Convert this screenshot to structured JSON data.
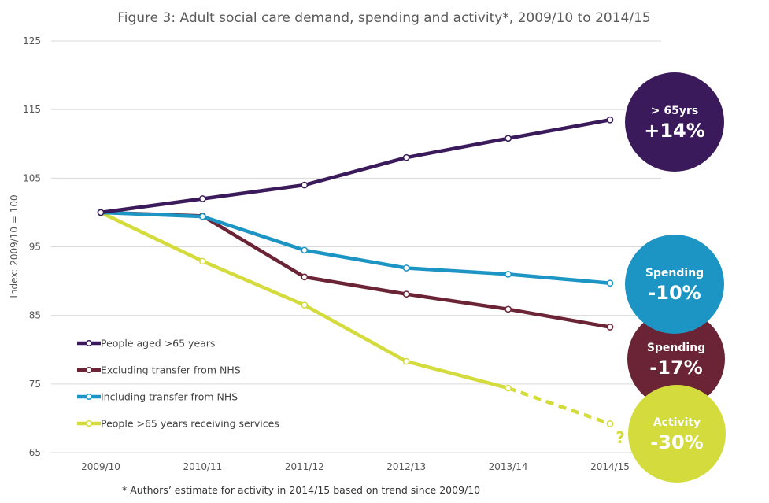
{
  "chart_data": {
    "type": "line",
    "title": "Figure 3: Adult social care demand, spending and activity*, 2009/10 to 2014/15",
    "ylabel": "Index:  2009/10  =  100",
    "xlabel": "",
    "ylim": [
      65,
      125
    ],
    "yticks": [
      65,
      75,
      85,
      95,
      105,
      115,
      125
    ],
    "categories": [
      "2009/10",
      "2010/11",
      "2011/12",
      "2012/13",
      "2013/14",
      "2014/15"
    ],
    "grid": "horizontal",
    "legend_position": "bottom-left",
    "series": [
      {
        "name": "People aged >65 years",
        "color": "#3a1a5a",
        "values": [
          100,
          102,
          104,
          108,
          110.8,
          113.5
        ]
      },
      {
        "name": "Excluding transfer from NHS",
        "color": "#6b2435",
        "values": [
          100,
          99.5,
          90.6,
          88.1,
          85.9,
          83.3
        ]
      },
      {
        "name": "Including transfer from NHS",
        "color": "#1d95c4",
        "values": [
          100,
          99.4,
          94.5,
          91.9,
          91.0,
          89.7
        ]
      },
      {
        "name": "People >65 years receiving services",
        "color": "#d3dc3c",
        "values": [
          100,
          92.9,
          86.5,
          78.3,
          74.4,
          69.2
        ],
        "estimated_last": true
      }
    ],
    "annotations": {
      "question_mark": "?",
      "footnote": "* Authors’ estimate for activity in 2014/15 based on trend since 2009/10"
    },
    "bubbles": [
      {
        "label": "> 65yrs",
        "value": "+14%",
        "color": "#3a1a5a"
      },
      {
        "label": "Spending",
        "value": "-17%",
        "color": "#6b2435"
      },
      {
        "label": "Activity",
        "value": "-30%",
        "color": "#d3dc3c"
      },
      {
        "label": "Spending",
        "value": "-10%",
        "color": "#1d95c4"
      }
    ]
  }
}
